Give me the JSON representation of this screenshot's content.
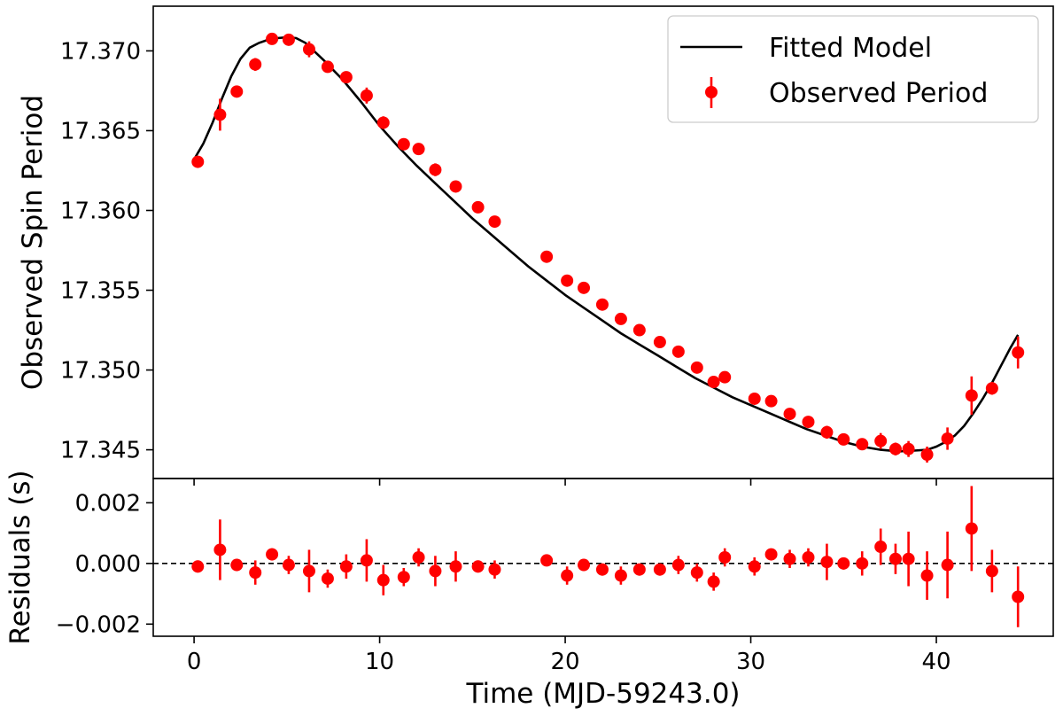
{
  "chart_data": [
    {
      "type": "scatter",
      "panel": "top",
      "title": "",
      "xlabel": "",
      "ylabel": "Observed Spin Period",
      "xlim": [
        -2.2,
        46.3
      ],
      "ylim": [
        17.3432,
        17.3728
      ],
      "xticks": [
        0,
        10,
        20,
        30,
        40
      ],
      "yticks": [
        17.345,
        17.35,
        17.355,
        17.36,
        17.365,
        17.37
      ],
      "ytick_labels": [
        "17.345",
        "17.350",
        "17.355",
        "17.360",
        "17.365",
        "17.370"
      ],
      "grid": false,
      "legend": {
        "placement": "top-right",
        "entries": [
          "Fitted Model",
          "Observed Period"
        ]
      },
      "series": [
        {
          "name": "Observed Period",
          "kind": "errorbar",
          "color": "#ff0000",
          "x": [
            0.2,
            1.4,
            2.3,
            3.3,
            4.2,
            5.1,
            6.2,
            7.2,
            8.2,
            9.3,
            10.2,
            11.3,
            12.1,
            13.0,
            14.1,
            15.3,
            16.2,
            19.0,
            20.1,
            21.0,
            22.0,
            23.0,
            24.0,
            25.1,
            26.1,
            27.1,
            28.0,
            28.6,
            30.2,
            31.1,
            32.1,
            33.1,
            34.1,
            35.0,
            36.0,
            37.0,
            37.8,
            38.5,
            39.5,
            40.6,
            41.9,
            43.0,
            44.4
          ],
          "y": [
            17.36305,
            17.366,
            17.36745,
            17.36915,
            17.37075,
            17.3707,
            17.3701,
            17.369,
            17.36835,
            17.3672,
            17.3655,
            17.36415,
            17.36385,
            17.36255,
            17.3615,
            17.3602,
            17.3593,
            17.3571,
            17.3556,
            17.35515,
            17.3541,
            17.3532,
            17.3525,
            17.35175,
            17.35115,
            17.35015,
            17.34925,
            17.34955,
            17.3482,
            17.34805,
            17.34725,
            17.34675,
            17.3461,
            17.34565,
            17.34535,
            17.34555,
            17.34505,
            17.34505,
            17.3447,
            17.3457,
            17.3484,
            17.34885,
            17.3511
          ],
          "yerr": [
            0.0002,
            0.001,
            0.0003,
            0.0004,
            0.0002,
            0.0002,
            0.0005,
            0.0002,
            0.0002,
            0.0005,
            0.0004,
            0.0002,
            0.0002,
            0.0004,
            0.0003,
            0.0002,
            0.0002,
            0.0002,
            0.0002,
            0.0002,
            0.0002,
            0.0002,
            0.0002,
            0.0002,
            0.0002,
            0.0002,
            0.0002,
            0.0002,
            0.0002,
            0.0002,
            0.0002,
            0.0002,
            0.0004,
            0.0002,
            0.0002,
            0.0005,
            0.0004,
            0.0005,
            0.0005,
            0.0007,
            0.0012,
            0.0004,
            0.001
          ]
        },
        {
          "name": "Fitted Model",
          "kind": "line",
          "color": "#000000",
          "x": [
            0,
            0.5,
            1,
            1.5,
            2,
            2.5,
            3,
            3.5,
            4,
            4.5,
            5,
            5.5,
            6,
            7,
            8,
            9,
            10,
            11,
            12,
            13,
            14,
            15,
            16,
            17,
            18,
            19,
            20,
            21,
            22,
            23,
            24,
            25,
            26,
            27,
            28,
            29,
            30,
            31,
            32,
            33,
            34,
            35,
            36,
            37,
            38,
            38.8,
            39.5,
            40,
            40.5,
            41,
            41.5,
            42,
            42.5,
            43,
            43.5,
            44,
            44.4
          ],
          "y": [
            17.3632,
            17.3642,
            17.3655,
            17.367,
            17.3684,
            17.3695,
            17.3702,
            17.3705,
            17.3707,
            17.3708,
            17.37085,
            17.3708,
            17.3705,
            17.3694,
            17.3682,
            17.3668,
            17.3653,
            17.364,
            17.3628,
            17.3617,
            17.3606,
            17.3595,
            17.3585,
            17.3575,
            17.3565,
            17.3556,
            17.3547,
            17.3539,
            17.3531,
            17.3523,
            17.3516,
            17.3509,
            17.3502,
            17.3495,
            17.3489,
            17.3483,
            17.3478,
            17.3473,
            17.3468,
            17.3463,
            17.3459,
            17.3455,
            17.3452,
            17.345,
            17.3449,
            17.34495,
            17.345,
            17.3452,
            17.3455,
            17.3459,
            17.3465,
            17.3473,
            17.3482,
            17.3492,
            17.3503,
            17.3514,
            17.3522
          ]
        }
      ]
    },
    {
      "type": "scatter",
      "panel": "bottom",
      "title": "",
      "xlabel": "Time (MJD-59243.0)",
      "ylabel": "Residuals (s)",
      "xlim": [
        -2.2,
        46.3
      ],
      "ylim": [
        -0.0024,
        0.0028
      ],
      "xticks": [
        0,
        10,
        20,
        30,
        40
      ],
      "yticks": [
        -0.002,
        0.0,
        0.002
      ],
      "ytick_labels": [
        "−0.002",
        "0.000",
        "0.002"
      ],
      "grid": false,
      "reference_line": {
        "y": 0.0,
        "style": "dashed",
        "color": "#000000"
      },
      "series": [
        {
          "name": "Residuals",
          "kind": "errorbar",
          "color": "#ff0000",
          "x": [
            0.2,
            1.4,
            2.3,
            3.3,
            4.2,
            5.1,
            6.2,
            7.2,
            8.2,
            9.3,
            10.2,
            11.3,
            12.1,
            13.0,
            14.1,
            15.3,
            16.2,
            19.0,
            20.1,
            21.0,
            22.0,
            23.0,
            24.0,
            25.1,
            26.1,
            27.1,
            28.0,
            28.6,
            30.2,
            31.1,
            32.1,
            33.1,
            34.1,
            35.0,
            36.0,
            37.0,
            37.8,
            38.5,
            39.5,
            40.6,
            41.9,
            43.0,
            44.4
          ],
          "y": [
            -0.0001,
            0.00045,
            -5e-05,
            -0.0003,
            0.0003,
            -5e-05,
            -0.00025,
            -0.0005,
            -0.0001,
            0.0001,
            -0.00055,
            -0.00045,
            0.0002,
            -0.00025,
            -0.0001,
            -0.0001,
            -0.0002,
            0.0001,
            -0.0004,
            -5e-05,
            -0.0002,
            -0.0004,
            -0.0002,
            -0.0002,
            -5e-05,
            -0.0003,
            -0.0006,
            0.0002,
            -0.0001,
            0.0003,
            0.00015,
            0.0002,
            5e-05,
            0.0,
            0.0,
            0.00055,
            0.00015,
            0.00015,
            -0.0004,
            -5e-05,
            0.00115,
            -0.00025,
            -0.0011
          ],
          "yerr": [
            0.0002,
            0.001,
            0.0002,
            0.0004,
            0.0002,
            0.0003,
            0.0007,
            0.0003,
            0.0004,
            0.0007,
            0.0005,
            0.0003,
            0.0003,
            0.0005,
            0.0005,
            0.0002,
            0.0003,
            0.0001,
            0.0003,
            0.0002,
            0.0002,
            0.0003,
            0.0002,
            0.0002,
            0.0003,
            0.0003,
            0.0003,
            0.0003,
            0.0003,
            0.0001,
            0.0003,
            0.0003,
            0.0006,
            0.0002,
            0.0004,
            0.0006,
            0.0005,
            0.0009,
            0.0008,
            0.0011,
            0.0014,
            0.0007,
            0.001
          ]
        }
      ]
    }
  ]
}
